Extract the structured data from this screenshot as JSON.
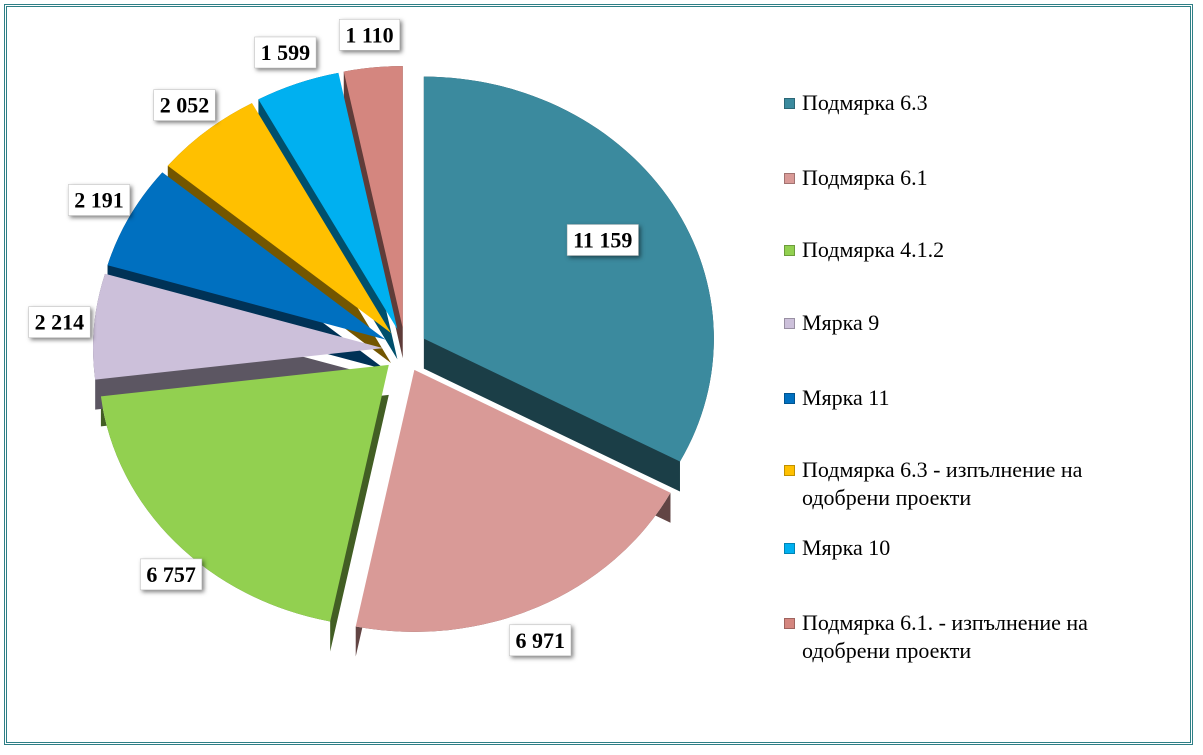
{
  "chart_data": {
    "type": "pie",
    "categories": [
      "Подмярка 6.3",
      "Подмярка 6.1",
      "Подмярка 4.1.2",
      "Мярка 9",
      "Мярка 11",
      "Подмярка 6.3 - изпълнение на одобрени проекти",
      "Мярка 10",
      "Подмярка 6.1. - изпълнение на одобрени проекти"
    ],
    "values": [
      11159,
      6971,
      6757,
      2214,
      2191,
      2052,
      1599,
      1110
    ],
    "value_labels": [
      "11 159",
      "6 971",
      "6 757",
      "2 214",
      "2 191",
      "2 052",
      "1 599",
      "1 110"
    ],
    "colors": [
      "#3b8a9e",
      "#d99a97",
      "#92d050",
      "#ccc0da",
      "#0070c0",
      "#ffc000",
      "#00b0f0",
      "#d4867f"
    ],
    "legend": "right"
  }
}
